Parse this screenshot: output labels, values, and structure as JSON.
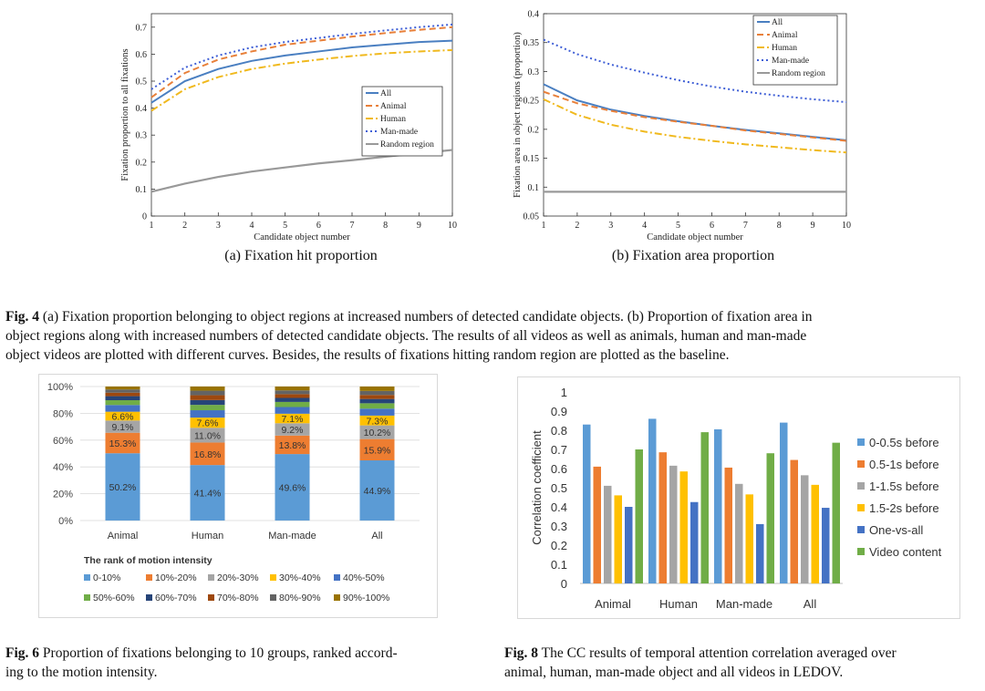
{
  "fig4": {
    "caption_label": "Fig. 4",
    "caption_text_1": " (a) Fixation proportion belonging to object regions at increased numbers of detected candidate objects. (b) Proportion of fixation area in",
    "caption_text_2": "object regions along with increased numbers of detected candidate objects. The results of all videos as well as animals, human and man-made",
    "caption_text_3": "object videos are plotted with different curves. Besides, the results of fixations hitting random region are plotted as the baseline."
  },
  "fig6": {
    "caption_label": "Fig. 6",
    "caption_text_1": " Proportion of fixations belonging to 10 groups, ranked accord-",
    "caption_text_2": "ing to the motion intensity."
  },
  "fig8": {
    "caption_label": "Fig. 8",
    "caption_text_1": " The CC results of temporal attention correlation averaged over",
    "caption_text_2": "animal, human, man-made object and all videos in LEDOV."
  },
  "chart_data": [
    {
      "id": "fig4a",
      "type": "line",
      "subcaption": "(a)  Fixation hit proportion",
      "xlabel": "Candidate object number",
      "ylabel": "Fixation proportion to all fixations",
      "xlim": [
        1,
        10
      ],
      "ylim": [
        0,
        0.75
      ],
      "xticks": [
        "1",
        "2",
        "3",
        "4",
        "5",
        "6",
        "7",
        "8",
        "9",
        "10"
      ],
      "yticks": [
        "0",
        "0.1",
        "0.2",
        "0.3",
        "0.4",
        "0.5",
        "0.6",
        "0.7"
      ],
      "x": [
        1,
        2,
        3,
        4,
        5,
        6,
        7,
        8,
        9,
        10
      ],
      "series": [
        {
          "name": "All",
          "color": "#4a7fc1",
          "dash": "solid",
          "values": [
            0.42,
            0.5,
            0.545,
            0.575,
            0.595,
            0.61,
            0.625,
            0.635,
            0.645,
            0.65
          ]
        },
        {
          "name": "Animal",
          "color": "#e8803a",
          "dash": "dashed",
          "values": [
            0.44,
            0.53,
            0.58,
            0.61,
            0.635,
            0.65,
            0.665,
            0.678,
            0.69,
            0.7
          ]
        },
        {
          "name": "Human",
          "color": "#f0b91e",
          "dash": "dashdot",
          "values": [
            0.39,
            0.47,
            0.515,
            0.545,
            0.565,
            0.58,
            0.593,
            0.603,
            0.61,
            0.615
          ]
        },
        {
          "name": "Man-made",
          "color": "#3f5fd6",
          "dash": "dotted",
          "values": [
            0.47,
            0.55,
            0.595,
            0.625,
            0.645,
            0.66,
            0.675,
            0.688,
            0.7,
            0.71
          ]
        },
        {
          "name": "Random region",
          "color": "#999999",
          "dash": "solid",
          "values": [
            0.09,
            0.12,
            0.145,
            0.165,
            0.18,
            0.195,
            0.207,
            0.22,
            0.232,
            0.245
          ]
        }
      ],
      "legend": "center-right"
    },
    {
      "id": "fig4b",
      "type": "line",
      "subcaption": "(b)  Fixation area proportion",
      "xlabel": "Candidate object number",
      "ylabel": "Fixation area in object regions (proportion)",
      "xlim": [
        1,
        10
      ],
      "ylim": [
        0.05,
        0.4
      ],
      "xticks": [
        "1",
        "2",
        "3",
        "4",
        "5",
        "6",
        "7",
        "8",
        "9",
        "10"
      ],
      "yticks": [
        "0.05",
        "0.1",
        "0.15",
        "0.2",
        "0.25",
        "0.3",
        "0.35",
        "0.4"
      ],
      "x": [
        1,
        2,
        3,
        4,
        5,
        6,
        7,
        8,
        9,
        10
      ],
      "series": [
        {
          "name": "All",
          "color": "#4a7fc1",
          "dash": "solid",
          "values": [
            0.278,
            0.25,
            0.234,
            0.223,
            0.214,
            0.206,
            0.199,
            0.193,
            0.187,
            0.181
          ]
        },
        {
          "name": "Animal",
          "color": "#e8803a",
          "dash": "dashed",
          "values": [
            0.265,
            0.245,
            0.232,
            0.221,
            0.213,
            0.206,
            0.198,
            0.192,
            0.186,
            0.18
          ]
        },
        {
          "name": "Human",
          "color": "#f0b91e",
          "dash": "dashdot",
          "values": [
            0.252,
            0.225,
            0.208,
            0.196,
            0.187,
            0.18,
            0.174,
            0.169,
            0.164,
            0.16
          ]
        },
        {
          "name": "Man-made",
          "color": "#3f5fd6",
          "dash": "dotted",
          "values": [
            0.355,
            0.33,
            0.312,
            0.298,
            0.285,
            0.274,
            0.265,
            0.258,
            0.252,
            0.247
          ]
        },
        {
          "name": "Random region",
          "color": "#999999",
          "dash": "solid",
          "values": [
            0.092,
            0.092,
            0.092,
            0.092,
            0.092,
            0.092,
            0.092,
            0.092,
            0.092,
            0.092
          ]
        }
      ],
      "legend": "top-right"
    },
    {
      "id": "fig6",
      "type": "bar",
      "stacked": true,
      "title": "The rank of motion intensity",
      "categories": [
        "Animal",
        "Human",
        "Man-made",
        "All"
      ],
      "yticks": [
        "0%",
        "20%",
        "40%",
        "60%",
        "80%",
        "100%"
      ],
      "ylim": [
        0,
        100
      ],
      "series": [
        {
          "name": "0-10%",
          "color": "#5b9bd5",
          "values": [
            50.2,
            41.4,
            49.6,
            44.9
          ],
          "labels": [
            "50.2%",
            "41.4%",
            "49.6%",
            "44.9%"
          ]
        },
        {
          "name": "10%-20%",
          "color": "#ed7d31",
          "values": [
            15.3,
            16.8,
            13.8,
            15.9
          ],
          "labels": [
            "15.3%",
            "16.8%",
            "13.8%",
            "15.9%"
          ]
        },
        {
          "name": "20%-30%",
          "color": "#a5a5a5",
          "values": [
            9.1,
            11.0,
            9.2,
            10.2
          ],
          "labels": [
            "9.1%",
            "11.0%",
            "9.2%",
            "10.2%"
          ]
        },
        {
          "name": "30%-40%",
          "color": "#ffc000",
          "values": [
            6.6,
            7.6,
            7.1,
            7.3
          ],
          "labels": [
            "6.6%",
            "7.6%",
            "7.1%",
            "7.3%"
          ]
        },
        {
          "name": "40%-50%",
          "color": "#4472c4",
          "values": [
            5.0,
            5.5,
            5.0,
            5.2
          ],
          "labels": [
            "",
            "",
            "",
            ""
          ]
        },
        {
          "name": "50%-60%",
          "color": "#70ad47",
          "values": [
            3.6,
            4.0,
            3.8,
            4.0
          ],
          "labels": [
            "",
            "",
            "",
            ""
          ]
        },
        {
          "name": "60%-70%",
          "color": "#264478",
          "values": [
            3.0,
            3.6,
            3.0,
            3.2
          ],
          "labels": [
            "",
            "",
            "",
            ""
          ]
        },
        {
          "name": "70%-80%",
          "color": "#9e480e",
          "values": [
            2.6,
            3.6,
            2.8,
            3.0
          ],
          "labels": [
            "",
            "",
            "",
            ""
          ]
        },
        {
          "name": "80%-90%",
          "color": "#636363",
          "values": [
            2.4,
            3.4,
            2.8,
            3.0
          ],
          "labels": [
            "",
            "",
            "",
            ""
          ]
        },
        {
          "name": "90%-100%",
          "color": "#997300",
          "values": [
            2.2,
            3.1,
            2.9,
            3.3
          ],
          "labels": [
            "",
            "",
            "",
            ""
          ]
        }
      ],
      "legend": "bottom"
    },
    {
      "id": "fig8",
      "type": "bar",
      "ylabel": "Correlation coefficient",
      "categories": [
        "Animal",
        "Human",
        "Man-made",
        "All"
      ],
      "ylim": [
        0,
        1
      ],
      "yticks": [
        "0",
        "0.1",
        "0.2",
        "0.3",
        "0.4",
        "0.5",
        "0.6",
        "0.7",
        "0.8",
        "0.9",
        "1"
      ],
      "series": [
        {
          "name": "0-0.5s before",
          "color": "#5b9bd5",
          "values": [
            0.83,
            0.86,
            0.805,
            0.84
          ]
        },
        {
          "name": "0.5-1s before",
          "color": "#ed7d31",
          "values": [
            0.61,
            0.685,
            0.605,
            0.645
          ]
        },
        {
          "name": "1-1.5s before",
          "color": "#a5a5a5",
          "values": [
            0.51,
            0.615,
            0.52,
            0.565
          ]
        },
        {
          "name": "1.5-2s before",
          "color": "#ffc000",
          "values": [
            0.46,
            0.585,
            0.465,
            0.515
          ]
        },
        {
          "name": "One-vs-all",
          "color": "#4472c4",
          "values": [
            0.4,
            0.425,
            0.31,
            0.395
          ]
        },
        {
          "name": "Video content",
          "color": "#70ad47",
          "values": [
            0.7,
            0.79,
            0.68,
            0.735
          ]
        }
      ],
      "legend": "right"
    }
  ]
}
